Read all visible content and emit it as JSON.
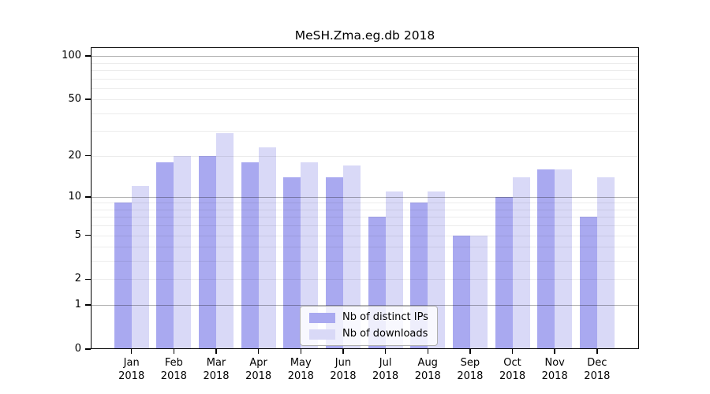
{
  "chart_data": {
    "type": "bar",
    "title": "MeSH.Zma.eg.db 2018",
    "categories": [
      "Jan 2018",
      "Feb 2018",
      "Mar 2018",
      "Apr 2018",
      "May 2018",
      "Jun 2018",
      "Jul 2018",
      "Aug 2018",
      "Sep 2018",
      "Oct 2018",
      "Nov 2018",
      "Dec 2018"
    ],
    "series": [
      {
        "name": "Nb of distinct IPs",
        "color": "#a9a9f0",
        "values": [
          9,
          18,
          20,
          18,
          14,
          14,
          7,
          9,
          5,
          10,
          16,
          7
        ]
      },
      {
        "name": "Nb of downloads",
        "color": "#d9d9f7",
        "values": [
          12,
          20,
          29,
          23,
          18,
          17,
          11,
          11,
          5,
          14,
          16,
          14
        ]
      }
    ],
    "yscale": "log1p",
    "ylim": [
      0,
      115
    ],
    "yticks": [
      0,
      1,
      2,
      5,
      10,
      20,
      50,
      100
    ],
    "grid_major": [
      1,
      10,
      100
    ],
    "grid_minor": [
      2,
      3,
      4,
      5,
      6,
      7,
      8,
      9,
      20,
      30,
      40,
      50,
      60,
      70,
      80,
      90
    ],
    "grid": true,
    "legend_position": "lower center",
    "xlabel": "",
    "ylabel": ""
  }
}
